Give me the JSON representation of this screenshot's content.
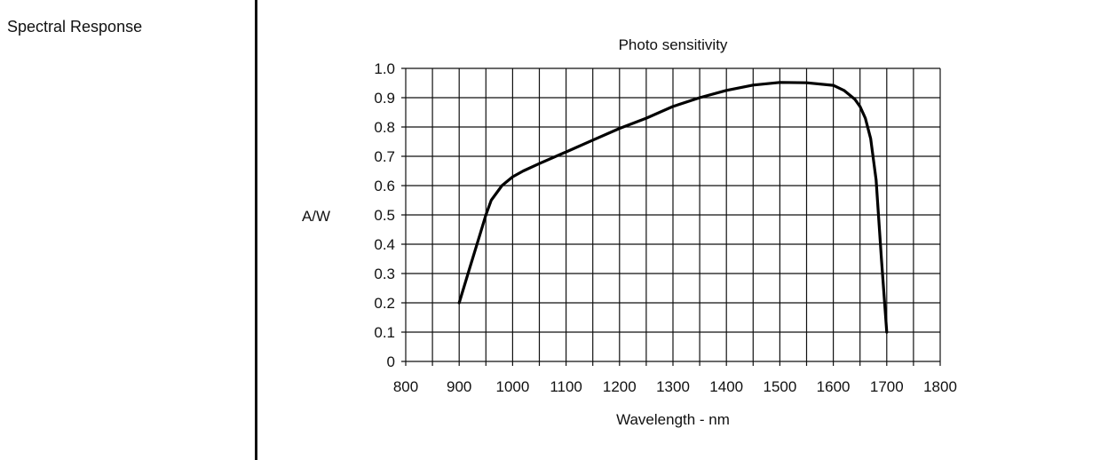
{
  "section": {
    "label": "Spectral Response"
  },
  "chart_data": {
    "type": "line",
    "title": "Photo sensitivity",
    "xlabel": "Wavelength - nm",
    "ylabel": "A/W",
    "xlim": [
      800,
      1800
    ],
    "ylim": [
      0,
      1.0
    ],
    "x_ticks": [
      800,
      850,
      900,
      950,
      1000,
      1050,
      1100,
      1150,
      1200,
      1250,
      1300,
      1350,
      1400,
      1450,
      1500,
      1550,
      1600,
      1650,
      1700,
      1750,
      1800
    ],
    "x_tick_labels": [
      "800",
      "900",
      "1000",
      "1100",
      "1200",
      "1300",
      "1400",
      "1500",
      "1600",
      "1700",
      "1800"
    ],
    "y_tick_labels": [
      "0",
      "0.1",
      "0.2",
      "0.3",
      "0.4",
      "0.5",
      "0.6",
      "0.7",
      "0.8",
      "0.9",
      "1.0"
    ],
    "y_ticks": [
      0,
      0.1,
      0.2,
      0.3,
      0.4,
      0.5,
      0.6,
      0.7,
      0.8,
      0.9,
      1.0
    ],
    "grid": true,
    "line_color": "#000000",
    "series": [
      {
        "x": [
          900,
          920,
          940,
          950,
          960,
          980,
          1000,
          1020,
          1050,
          1100,
          1150,
          1200,
          1250,
          1300,
          1350,
          1400,
          1450,
          1500,
          1550,
          1600,
          1620,
          1640,
          1650,
          1660,
          1670,
          1680,
          1690,
          1700
        ],
        "y": [
          0.2,
          0.32,
          0.44,
          0.5,
          0.55,
          0.6,
          0.63,
          0.65,
          0.675,
          0.715,
          0.755,
          0.795,
          0.83,
          0.87,
          0.9,
          0.925,
          0.943,
          0.952,
          0.951,
          0.942,
          0.925,
          0.895,
          0.87,
          0.83,
          0.76,
          0.62,
          0.35,
          0.1
        ]
      }
    ]
  }
}
